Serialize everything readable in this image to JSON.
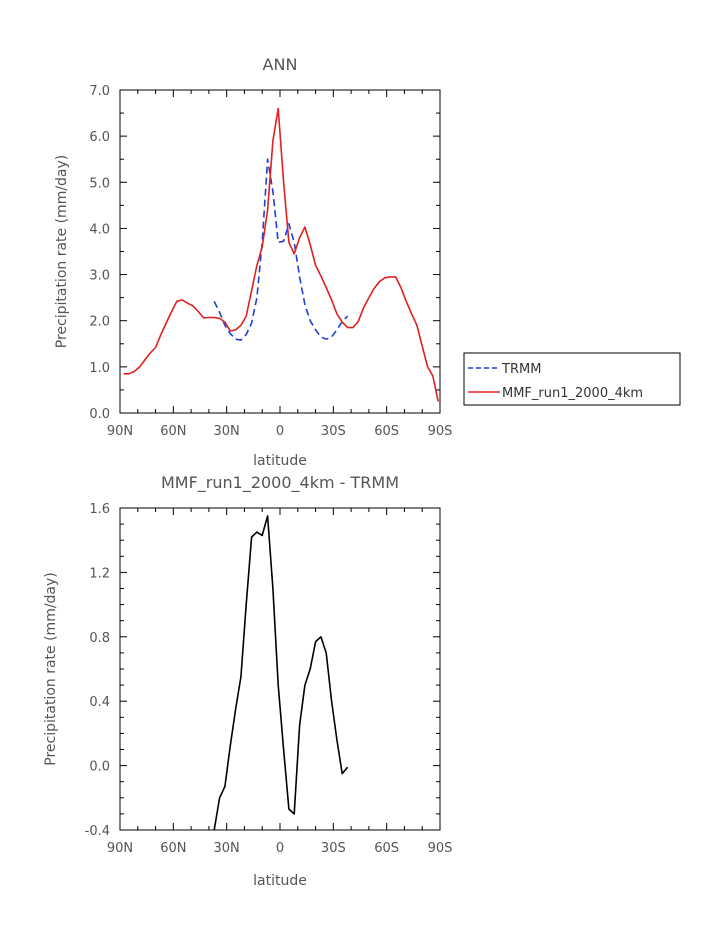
{
  "chart_data": [
    {
      "type": "line",
      "title": "ANN",
      "xlabel": "latitude",
      "ylabel": "Precipitation rate (mm/day)",
      "xlim": [
        90,
        -90
      ],
      "ylim": [
        0,
        7
      ],
      "xtick_labels": [
        "90N",
        "60N",
        "30N",
        "0",
        "30S",
        "60S",
        "90S"
      ],
      "ytick_labels": [
        "0.0",
        "1.0",
        "2.0",
        "3.0",
        "4.0",
        "5.0",
        "6.0",
        "7.0"
      ],
      "series": [
        {
          "name": "TRMM",
          "color": "#1f3fd6",
          "style": "dashed",
          "x": [
            37,
            34,
            31,
            28,
            25,
            22,
            19,
            16,
            13,
            10,
            7,
            4,
            1,
            -2,
            -5,
            -8,
            -11,
            -14,
            -17,
            -20,
            -23,
            -26,
            -29,
            -32,
            -35,
            -38
          ],
          "y": [
            2.42,
            2.18,
            1.9,
            1.72,
            1.6,
            1.58,
            1.7,
            1.95,
            2.5,
            3.7,
            5.5,
            4.8,
            3.7,
            3.72,
            4.1,
            3.7,
            2.95,
            2.35,
            2.0,
            1.8,
            1.65,
            1.6,
            1.65,
            1.8,
            1.98,
            2.1
          ]
        },
        {
          "name": "MMF_run1_2000_4km",
          "color": "#e02020",
          "style": "solid",
          "x": [
            88,
            85,
            82,
            79,
            76,
            73,
            70,
            67,
            64,
            61,
            58,
            55,
            52,
            49,
            46,
            43,
            40,
            37,
            34,
            31,
            28,
            25,
            22,
            19,
            16,
            13,
            10,
            7,
            4,
            1,
            -2,
            -5,
            -8,
            -11,
            -14,
            -17,
            -20,
            -23,
            -26,
            -29,
            -32,
            -35,
            -38,
            -41,
            -44,
            -47,
            -50,
            -53,
            -56,
            -59,
            -62,
            -65,
            -68,
            -71,
            -74,
            -77,
            -80,
            -83,
            -86,
            -89
          ],
          "y": [
            0.85,
            0.85,
            0.9,
            1.0,
            1.15,
            1.3,
            1.42,
            1.7,
            1.95,
            2.2,
            2.42,
            2.45,
            2.38,
            2.32,
            2.2,
            2.06,
            2.07,
            2.07,
            2.05,
            1.97,
            1.78,
            1.8,
            1.9,
            2.1,
            2.65,
            3.2,
            3.6,
            4.4,
            5.9,
            6.6,
            5.0,
            3.7,
            3.45,
            3.8,
            4.03,
            3.65,
            3.2,
            2.97,
            2.72,
            2.45,
            2.15,
            1.97,
            1.85,
            1.85,
            1.98,
            2.28,
            2.5,
            2.7,
            2.85,
            2.93,
            2.95,
            2.95,
            2.72,
            2.42,
            2.15,
            1.9,
            1.45,
            1.0,
            0.8,
            0.25
          ]
        }
      ],
      "legend_position": "right",
      "grid": false
    },
    {
      "type": "line",
      "title": "MMF_run1_2000_4km - TRMM",
      "xlabel": "latitude",
      "ylabel": "Precipitation rate (mm/day)",
      "xlim": [
        90,
        -90
      ],
      "ylim": [
        -0.4,
        1.6
      ],
      "xtick_labels": [
        "90N",
        "60N",
        "30N",
        "0",
        "30S",
        "60S",
        "90S"
      ],
      "ytick_labels": [
        "-0.4",
        "0.0",
        "0.4",
        "0.8",
        "1.2",
        "1.6"
      ],
      "series": [
        {
          "color": "#000000",
          "style": "solid",
          "x": [
            37,
            34,
            31,
            28,
            25,
            22,
            19,
            16,
            13,
            10,
            7,
            4,
            1,
            -2,
            -5,
            -8,
            -11,
            -14,
            -17,
            -20,
            -23,
            -26,
            -29,
            -32,
            -35,
            -38
          ],
          "y": [
            -0.4,
            -0.2,
            -0.13,
            0.12,
            0.35,
            0.55,
            1.0,
            1.42,
            1.45,
            1.43,
            1.55,
            1.1,
            0.5,
            0.1,
            -0.27,
            -0.3,
            0.25,
            0.5,
            0.6,
            0.77,
            0.8,
            0.7,
            0.4,
            0.16,
            -0.05,
            -0.01
          ]
        }
      ],
      "grid": false
    }
  ]
}
